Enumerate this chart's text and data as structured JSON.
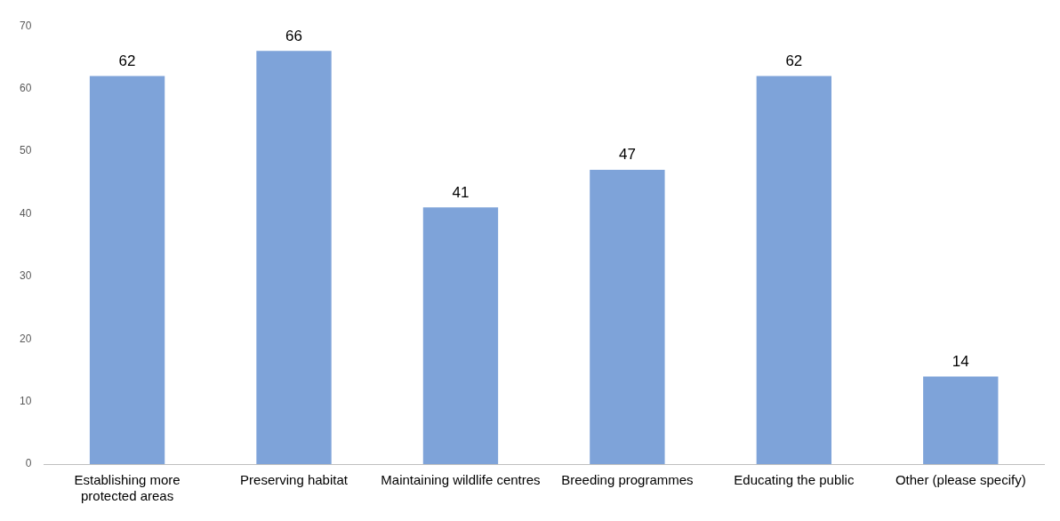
{
  "chart_data": {
    "type": "bar",
    "categories": [
      "Establishing more protected areas",
      "Preserving habitat",
      "Maintaining wildlife centres",
      "Breeding programmes",
      "Educating the public",
      "Other (please specify)"
    ],
    "values": [
      62,
      66,
      41,
      47,
      62,
      14
    ],
    "color": "#7ea3d9",
    "ylim": [
      0,
      70
    ],
    "yticks": [
      0,
      10,
      20,
      30,
      40,
      50,
      60,
      70
    ],
    "grid": false,
    "data_labels": true
  }
}
